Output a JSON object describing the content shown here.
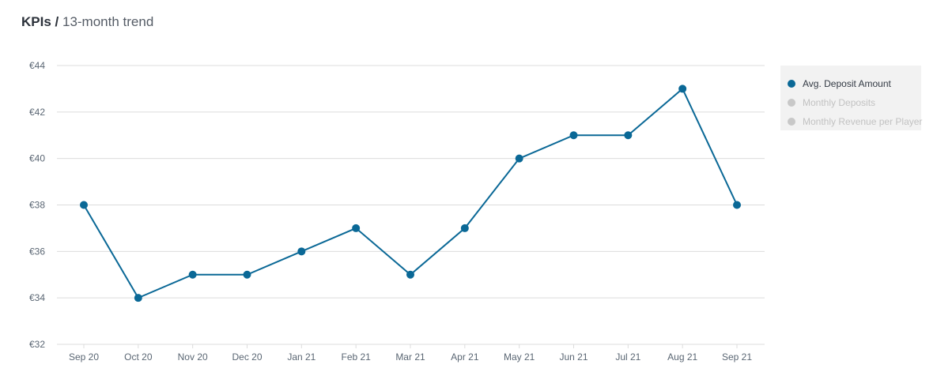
{
  "header": {
    "title_bold": "KPIs /",
    "title_light": "13-month trend"
  },
  "colors": {
    "series": "#0a6896",
    "inactive": "#c8c8c8",
    "grid": "#dcdcdc",
    "tick_text": "#5a6673"
  },
  "legend": {
    "items": [
      {
        "label": "Avg. Deposit Amount",
        "active": true,
        "color": "#0a6896"
      },
      {
        "label": "Monthly Deposits",
        "active": false,
        "color": "#c8c8c8"
      },
      {
        "label": "Monthly Revenue per Player",
        "active": false,
        "color": "#c8c8c8"
      }
    ]
  },
  "chart_data": {
    "type": "line",
    "categories": [
      "Sep 20",
      "Oct 20",
      "Nov 20",
      "Dec 20",
      "Jan 21",
      "Feb 21",
      "Mar 21",
      "Apr 21",
      "May 21",
      "Jun 21",
      "Jul 21",
      "Aug 21",
      "Sep 21"
    ],
    "series": [
      {
        "name": "Avg. Deposit Amount",
        "values": [
          38,
          34,
          35,
          35,
          36,
          37,
          35,
          37,
          40,
          41,
          41,
          43,
          38
        ],
        "visible": true
      },
      {
        "name": "Monthly Deposits",
        "visible": false
      },
      {
        "name": "Monthly Revenue per Player",
        "visible": false
      }
    ],
    "y_ticks": [
      "€32",
      "€34",
      "€36",
      "€38",
      "€40",
      "€42",
      "€44"
    ],
    "y_tick_values": [
      32,
      34,
      36,
      38,
      40,
      42,
      44
    ],
    "ylim": [
      32,
      44
    ],
    "grid": true,
    "legend_position": "right"
  }
}
